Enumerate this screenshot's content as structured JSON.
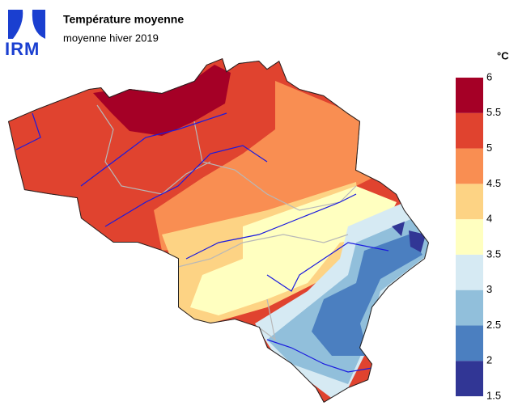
{
  "logo": "IRM",
  "title": "Température moyenne",
  "subtitle": "moyenne hiver 2019",
  "legend": {
    "unit": "°C",
    "ticks": [
      1.5,
      2,
      2.5,
      3,
      3.5,
      4,
      4.5,
      5,
      5.5,
      6
    ],
    "colors": [
      "#313695",
      "#4b7fc0",
      "#91bfdb",
      "#d6eaf3",
      "#ffffc0",
      "#fdd384",
      "#f98e52",
      "#e0432f",
      "#a50026"
    ]
  }
}
